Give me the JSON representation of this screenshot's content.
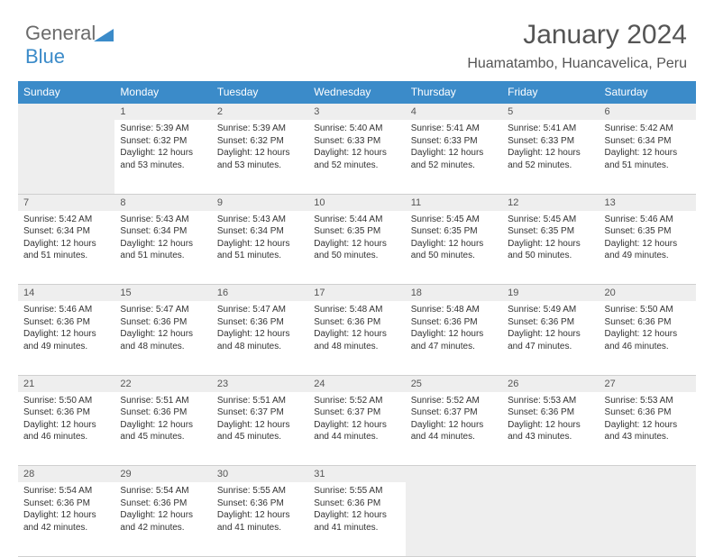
{
  "logo": {
    "part1": "General",
    "part2": "Blue"
  },
  "title": "January 2024",
  "location": "Huamatambo, Huancavelica, Peru",
  "colors": {
    "header_bg": "#3b8bc9",
    "header_text": "#ffffff",
    "daynum_bg": "#eeeeee",
    "border_line": "#3b8bc9",
    "text": "#333333",
    "muted": "#555555"
  },
  "calendar": {
    "day_headers": [
      "Sunday",
      "Monday",
      "Tuesday",
      "Wednesday",
      "Thursday",
      "Friday",
      "Saturday"
    ],
    "first_weekday": 1,
    "days": [
      {
        "n": 1,
        "sunrise": "5:39 AM",
        "sunset": "6:32 PM",
        "daylight": "12 hours and 53 minutes."
      },
      {
        "n": 2,
        "sunrise": "5:39 AM",
        "sunset": "6:32 PM",
        "daylight": "12 hours and 53 minutes."
      },
      {
        "n": 3,
        "sunrise": "5:40 AM",
        "sunset": "6:33 PM",
        "daylight": "12 hours and 52 minutes."
      },
      {
        "n": 4,
        "sunrise": "5:41 AM",
        "sunset": "6:33 PM",
        "daylight": "12 hours and 52 minutes."
      },
      {
        "n": 5,
        "sunrise": "5:41 AM",
        "sunset": "6:33 PM",
        "daylight": "12 hours and 52 minutes."
      },
      {
        "n": 6,
        "sunrise": "5:42 AM",
        "sunset": "6:34 PM",
        "daylight": "12 hours and 51 minutes."
      },
      {
        "n": 7,
        "sunrise": "5:42 AM",
        "sunset": "6:34 PM",
        "daylight": "12 hours and 51 minutes."
      },
      {
        "n": 8,
        "sunrise": "5:43 AM",
        "sunset": "6:34 PM",
        "daylight": "12 hours and 51 minutes."
      },
      {
        "n": 9,
        "sunrise": "5:43 AM",
        "sunset": "6:34 PM",
        "daylight": "12 hours and 51 minutes."
      },
      {
        "n": 10,
        "sunrise": "5:44 AM",
        "sunset": "6:35 PM",
        "daylight": "12 hours and 50 minutes."
      },
      {
        "n": 11,
        "sunrise": "5:45 AM",
        "sunset": "6:35 PM",
        "daylight": "12 hours and 50 minutes."
      },
      {
        "n": 12,
        "sunrise": "5:45 AM",
        "sunset": "6:35 PM",
        "daylight": "12 hours and 50 minutes."
      },
      {
        "n": 13,
        "sunrise": "5:46 AM",
        "sunset": "6:35 PM",
        "daylight": "12 hours and 49 minutes."
      },
      {
        "n": 14,
        "sunrise": "5:46 AM",
        "sunset": "6:36 PM",
        "daylight": "12 hours and 49 minutes."
      },
      {
        "n": 15,
        "sunrise": "5:47 AM",
        "sunset": "6:36 PM",
        "daylight": "12 hours and 48 minutes."
      },
      {
        "n": 16,
        "sunrise": "5:47 AM",
        "sunset": "6:36 PM",
        "daylight": "12 hours and 48 minutes."
      },
      {
        "n": 17,
        "sunrise": "5:48 AM",
        "sunset": "6:36 PM",
        "daylight": "12 hours and 48 minutes."
      },
      {
        "n": 18,
        "sunrise": "5:48 AM",
        "sunset": "6:36 PM",
        "daylight": "12 hours and 47 minutes."
      },
      {
        "n": 19,
        "sunrise": "5:49 AM",
        "sunset": "6:36 PM",
        "daylight": "12 hours and 47 minutes."
      },
      {
        "n": 20,
        "sunrise": "5:50 AM",
        "sunset": "6:36 PM",
        "daylight": "12 hours and 46 minutes."
      },
      {
        "n": 21,
        "sunrise": "5:50 AM",
        "sunset": "6:36 PM",
        "daylight": "12 hours and 46 minutes."
      },
      {
        "n": 22,
        "sunrise": "5:51 AM",
        "sunset": "6:36 PM",
        "daylight": "12 hours and 45 minutes."
      },
      {
        "n": 23,
        "sunrise": "5:51 AM",
        "sunset": "6:37 PM",
        "daylight": "12 hours and 45 minutes."
      },
      {
        "n": 24,
        "sunrise": "5:52 AM",
        "sunset": "6:37 PM",
        "daylight": "12 hours and 44 minutes."
      },
      {
        "n": 25,
        "sunrise": "5:52 AM",
        "sunset": "6:37 PM",
        "daylight": "12 hours and 44 minutes."
      },
      {
        "n": 26,
        "sunrise": "5:53 AM",
        "sunset": "6:36 PM",
        "daylight": "12 hours and 43 minutes."
      },
      {
        "n": 27,
        "sunrise": "5:53 AM",
        "sunset": "6:36 PM",
        "daylight": "12 hours and 43 minutes."
      },
      {
        "n": 28,
        "sunrise": "5:54 AM",
        "sunset": "6:36 PM",
        "daylight": "12 hours and 42 minutes."
      },
      {
        "n": 29,
        "sunrise": "5:54 AM",
        "sunset": "6:36 PM",
        "daylight": "12 hours and 42 minutes."
      },
      {
        "n": 30,
        "sunrise": "5:55 AM",
        "sunset": "6:36 PM",
        "daylight": "12 hours and 41 minutes."
      },
      {
        "n": 31,
        "sunrise": "5:55 AM",
        "sunset": "6:36 PM",
        "daylight": "12 hours and 41 minutes."
      }
    ],
    "labels": {
      "sunrise": "Sunrise:",
      "sunset": "Sunset:",
      "daylight": "Daylight:"
    }
  }
}
